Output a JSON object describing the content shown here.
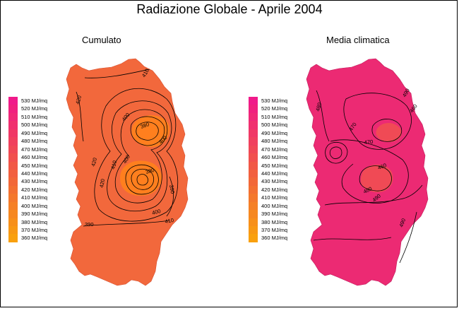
{
  "title": "Radiazione Globale - Aprile 2004",
  "maps": {
    "left": {
      "title": "Cumulato",
      "fill_color": "#f2683c",
      "hot_color": "#ff7f1e"
    },
    "right": {
      "title": "Media climatica",
      "fill_color": "#ec2a73",
      "hot_color": "#f04a55"
    }
  },
  "legend": [
    {
      "label": "530 MJ/mq",
      "color": "#f01a8a"
    },
    {
      "label": "520 MJ/mq",
      "color": "#f0207f"
    },
    {
      "label": "510 MJ/mq",
      "color": "#f02878"
    },
    {
      "label": "500 MJ/mq",
      "color": "#f0306f"
    },
    {
      "label": "490 MJ/mq",
      "color": "#f03866"
    },
    {
      "label": "480 MJ/mq",
      "color": "#f0405e"
    },
    {
      "label": "470 MJ/mq",
      "color": "#f04856"
    },
    {
      "label": "460 MJ/mq",
      "color": "#f1504e"
    },
    {
      "label": "450 MJ/mq",
      "color": "#f15846"
    },
    {
      "label": "440 MJ/mq",
      "color": "#f2603f"
    },
    {
      "label": "430 MJ/mq",
      "color": "#f26838"
    },
    {
      "label": "420 MJ/mq",
      "color": "#f37032"
    },
    {
      "label": "410 MJ/mq",
      "color": "#f4782c"
    },
    {
      "label": "400 MJ/mq",
      "color": "#f58026"
    },
    {
      "label": "390 MJ/mq",
      "color": "#f68820"
    },
    {
      "label": "380 MJ/mq",
      "color": "#f7901a"
    },
    {
      "label": "370 MJ/mq",
      "color": "#f89814"
    },
    {
      "label": "360 MJ/mq",
      "color": "#f9a00e"
    }
  ],
  "contour_labels": {
    "left": [
      "410",
      "420",
      "400",
      "380",
      "400",
      "420",
      "410",
      "400",
      "380",
      "420",
      "390",
      "400",
      "410",
      "390"
    ],
    "right": [
      "480",
      "490",
      "460",
      "470",
      "470",
      "460",
      "480",
      "490",
      "490"
    ]
  }
}
